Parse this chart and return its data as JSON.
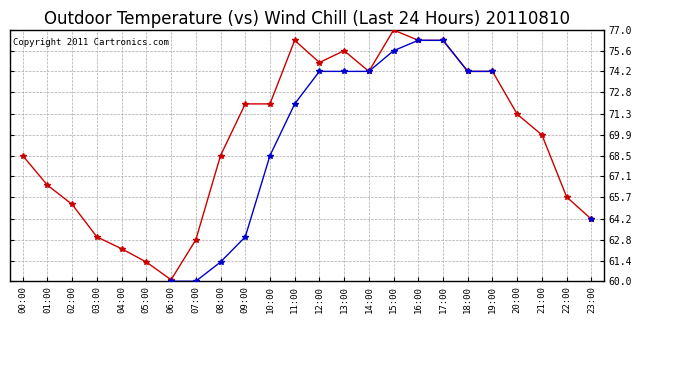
{
  "title": "Outdoor Temperature (vs) Wind Chill (Last 24 Hours) 20110810",
  "copyright": "Copyright 2011 Cartronics.com",
  "x_labels": [
    "00:00",
    "01:00",
    "02:00",
    "03:00",
    "04:00",
    "05:00",
    "06:00",
    "07:00",
    "08:00",
    "09:00",
    "10:00",
    "11:00",
    "12:00",
    "13:00",
    "14:00",
    "15:00",
    "16:00",
    "17:00",
    "18:00",
    "19:00",
    "20:00",
    "21:00",
    "22:00",
    "23:00"
  ],
  "temp_red": [
    68.5,
    66.5,
    65.2,
    63.0,
    62.2,
    61.3,
    60.1,
    62.8,
    68.5,
    72.0,
    72.0,
    76.3,
    74.8,
    75.6,
    74.2,
    77.0,
    76.3,
    76.3,
    74.2,
    74.2,
    71.3,
    69.9,
    65.7,
    64.2
  ],
  "wind_chill_blue": [
    null,
    null,
    null,
    null,
    null,
    null,
    60.0,
    60.0,
    61.3,
    63.0,
    68.5,
    72.0,
    74.2,
    74.2,
    74.2,
    75.6,
    76.3,
    76.3,
    74.2,
    74.2,
    null,
    null,
    null,
    64.2
  ],
  "ylim": [
    60.0,
    77.0
  ],
  "yticks": [
    60.0,
    61.4,
    62.8,
    64.2,
    65.7,
    67.1,
    68.5,
    69.9,
    71.3,
    72.8,
    74.2,
    75.6,
    77.0
  ],
  "bg_color": "#ffffff",
  "plot_bg_color": "#ffffff",
  "grid_color": "#aaaaaa",
  "red_color": "#cc0000",
  "blue_color": "#0000cc",
  "title_fontsize": 12,
  "copyright_fontsize": 6.5,
  "marker_size": 4
}
